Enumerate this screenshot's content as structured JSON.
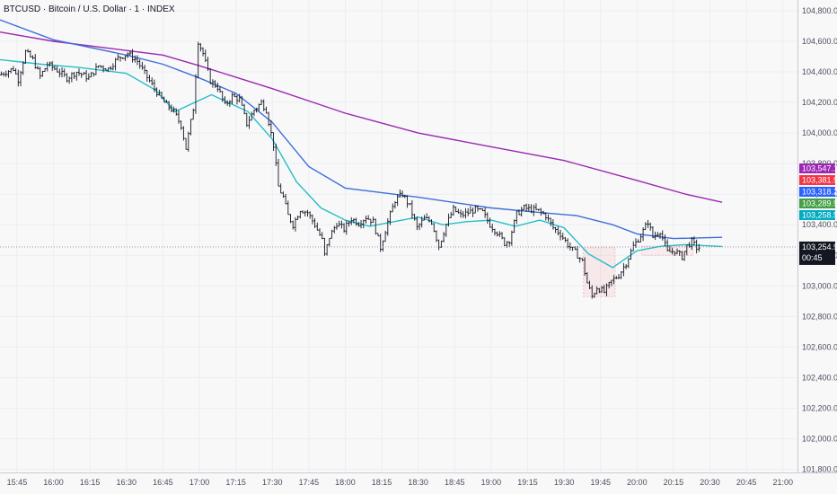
{
  "chart_data": {
    "type": "candlestick",
    "title": "BTCUSD · Bitcoin / U.S. Dollar · 1 · INDEX",
    "y_ticks": [
      "104,800.00",
      "104,600.00",
      "104,400.00",
      "104,200.00",
      "104,000.00",
      "103,800.00",
      "103,600.00",
      "103,400.00",
      "103,200.00",
      "103,000.00",
      "102,800.00",
      "102,600.00",
      "102,400.00",
      "102,200.00",
      "102,000.00",
      "101,800.00"
    ],
    "y_tick_values": [
      104800,
      104600,
      104400,
      104200,
      104000,
      103800,
      103600,
      103400,
      103200,
      103000,
      102800,
      102600,
      102400,
      102200,
      102000,
      101800
    ],
    "x_ticks": [
      "15:45",
      "16:00",
      "16:15",
      "16:30",
      "16:45",
      "17:00",
      "17:15",
      "17:30",
      "17:45",
      "18:00",
      "18:15",
      "18:30",
      "18:45",
      "19:00",
      "19:15",
      "19:30",
      "19:45",
      "20:00",
      "20:15",
      "20:30",
      "20:45",
      "21:00"
    ],
    "x_tick_minutes": [
      945,
      960,
      975,
      990,
      1005,
      1020,
      1035,
      1050,
      1065,
      1080,
      1095,
      1110,
      1125,
      1140,
      1155,
      1170,
      1185,
      1200,
      1215,
      1230,
      1245,
      1260
    ],
    "ylim": [
      101780,
      104870
    ],
    "xlim": [
      938,
      1266
    ],
    "last_price": "103,254.92",
    "countdown": "00:45",
    "close_path": [
      [
        938,
        104380
      ],
      [
        941,
        104400
      ],
      [
        944,
        104420
      ],
      [
        946,
        104350
      ],
      [
        949,
        104530
      ],
      [
        952,
        104480
      ],
      [
        955,
        104370
      ],
      [
        958,
        104450
      ],
      [
        962,
        104410
      ],
      [
        966,
        104360
      ],
      [
        970,
        104400
      ],
      [
        975,
        104360
      ],
      [
        979,
        104440
      ],
      [
        983,
        104420
      ],
      [
        987,
        104490
      ],
      [
        991,
        104520
      ],
      [
        995,
        104470
      ],
      [
        998,
        104390
      ],
      [
        1002,
        104290
      ],
      [
        1006,
        104200
      ],
      [
        1010,
        104140
      ],
      [
        1013,
        104050
      ],
      [
        1015,
        103900
      ],
      [
        1018,
        104160
      ],
      [
        1020,
        104600
      ],
      [
        1022,
        104520
      ],
      [
        1025,
        104340
      ],
      [
        1028,
        104300
      ],
      [
        1031,
        104180
      ],
      [
        1034,
        104240
      ],
      [
        1037,
        104220
      ],
      [
        1040,
        104060
      ],
      [
        1043,
        104150
      ],
      [
        1046,
        104200
      ],
      [
        1048,
        104150
      ],
      [
        1051,
        103920
      ],
      [
        1053,
        103650
      ],
      [
        1055,
        103580
      ],
      [
        1057,
        103460
      ],
      [
        1059,
        103400
      ],
      [
        1062,
        103500
      ],
      [
        1065,
        103480
      ],
      [
        1068,
        103400
      ],
      [
        1071,
        103300
      ],
      [
        1072,
        103200
      ],
      [
        1074,
        103320
      ],
      [
        1077,
        103410
      ],
      [
        1080,
        103370
      ],
      [
        1083,
        103440
      ],
      [
        1086,
        103410
      ],
      [
        1089,
        103450
      ],
      [
        1092,
        103420
      ],
      [
        1095,
        103250
      ],
      [
        1098,
        103420
      ],
      [
        1101,
        103560
      ],
      [
        1104,
        103600
      ],
      [
        1107,
        103520
      ],
      [
        1110,
        103380
      ],
      [
        1113,
        103440
      ],
      [
        1116,
        103420
      ],
      [
        1119,
        103260
      ],
      [
        1122,
        103400
      ],
      [
        1125,
        103500
      ],
      [
        1128,
        103460
      ],
      [
        1131,
        103480
      ],
      [
        1134,
        103500
      ],
      [
        1137,
        103480
      ],
      [
        1140,
        103400
      ],
      [
        1143,
        103350
      ],
      [
        1146,
        103280
      ],
      [
        1148,
        103300
      ],
      [
        1151,
        103470
      ],
      [
        1154,
        103510
      ],
      [
        1157,
        103500
      ],
      [
        1160,
        103490
      ],
      [
        1163,
        103460
      ],
      [
        1166,
        103380
      ],
      [
        1169,
        103340
      ],
      [
        1172,
        103270
      ],
      [
        1175,
        103220
      ],
      [
        1178,
        103160
      ],
      [
        1180,
        103020
      ],
      [
        1182,
        102930
      ],
      [
        1184,
        102990
      ],
      [
        1187,
        102960
      ],
      [
        1190,
        103030
      ],
      [
        1193,
        103070
      ],
      [
        1196,
        103150
      ],
      [
        1199,
        103260
      ],
      [
        1202,
        103330
      ],
      [
        1205,
        103420
      ],
      [
        1207,
        103320
      ],
      [
        1210,
        103360
      ],
      [
        1213,
        103220
      ],
      [
        1216,
        103230
      ],
      [
        1219,
        103190
      ],
      [
        1221,
        103260
      ],
      [
        1223,
        103290
      ],
      [
        1225,
        103250
      ]
    ],
    "series": [
      {
        "color": "#9c27b0",
        "points": [
          [
            938,
            104660
          ],
          [
            960,
            104600
          ],
          [
            990,
            104540
          ],
          [
            1005,
            104510
          ],
          [
            1020,
            104440
          ],
          [
            1050,
            104290
          ],
          [
            1080,
            104130
          ],
          [
            1110,
            104000
          ],
          [
            1140,
            103910
          ],
          [
            1170,
            103820
          ],
          [
            1200,
            103690
          ],
          [
            1220,
            103600
          ],
          [
            1235,
            103547
          ]
        ]
      },
      {
        "color": "#3e6fd8",
        "points": [
          [
            938,
            104740
          ],
          [
            960,
            104610
          ],
          [
            990,
            104510
          ],
          [
            1005,
            104450
          ],
          [
            1020,
            104360
          ],
          [
            1035,
            104260
          ],
          [
            1050,
            104070
          ],
          [
            1065,
            103780
          ],
          [
            1080,
            103640
          ],
          [
            1110,
            103580
          ],
          [
            1140,
            103510
          ],
          [
            1160,
            103480
          ],
          [
            1175,
            103460
          ],
          [
            1190,
            103400
          ],
          [
            1200,
            103340
          ],
          [
            1215,
            103310
          ],
          [
            1235,
            103318
          ]
        ]
      },
      {
        "color": "#26bdc7",
        "points": [
          [
            938,
            104480
          ],
          [
            955,
            104450
          ],
          [
            970,
            104430
          ],
          [
            990,
            104390
          ],
          [
            1002,
            104280
          ],
          [
            1010,
            104140
          ],
          [
            1018,
            104200
          ],
          [
            1025,
            104250
          ],
          [
            1040,
            104140
          ],
          [
            1050,
            103960
          ],
          [
            1060,
            103680
          ],
          [
            1070,
            103510
          ],
          [
            1080,
            103430
          ],
          [
            1090,
            103390
          ],
          [
            1100,
            103420
          ],
          [
            1110,
            103450
          ],
          [
            1120,
            103400
          ],
          [
            1130,
            103420
          ],
          [
            1140,
            103430
          ],
          [
            1150,
            103390
          ],
          [
            1160,
            103430
          ],
          [
            1170,
            103380
          ],
          [
            1180,
            103210
          ],
          [
            1190,
            103120
          ],
          [
            1200,
            103230
          ],
          [
            1210,
            103260
          ],
          [
            1220,
            103270
          ],
          [
            1235,
            103258
          ]
        ]
      }
    ],
    "price_tags": [
      {
        "text": "103,547.12",
        "value": 103547.12,
        "color": "#9c27b0"
      },
      {
        "text": "103,381.93",
        "value": 103381.93,
        "color": "#f23645"
      },
      {
        "text": "103,318.20",
        "value": 103318.2,
        "color": "#2962ff"
      },
      {
        "text": "103,289.90",
        "value": 103289.9,
        "color": "#43a047"
      },
      {
        "text": "103,258.50",
        "value": 103258.5,
        "color": "#00acc1"
      }
    ]
  }
}
